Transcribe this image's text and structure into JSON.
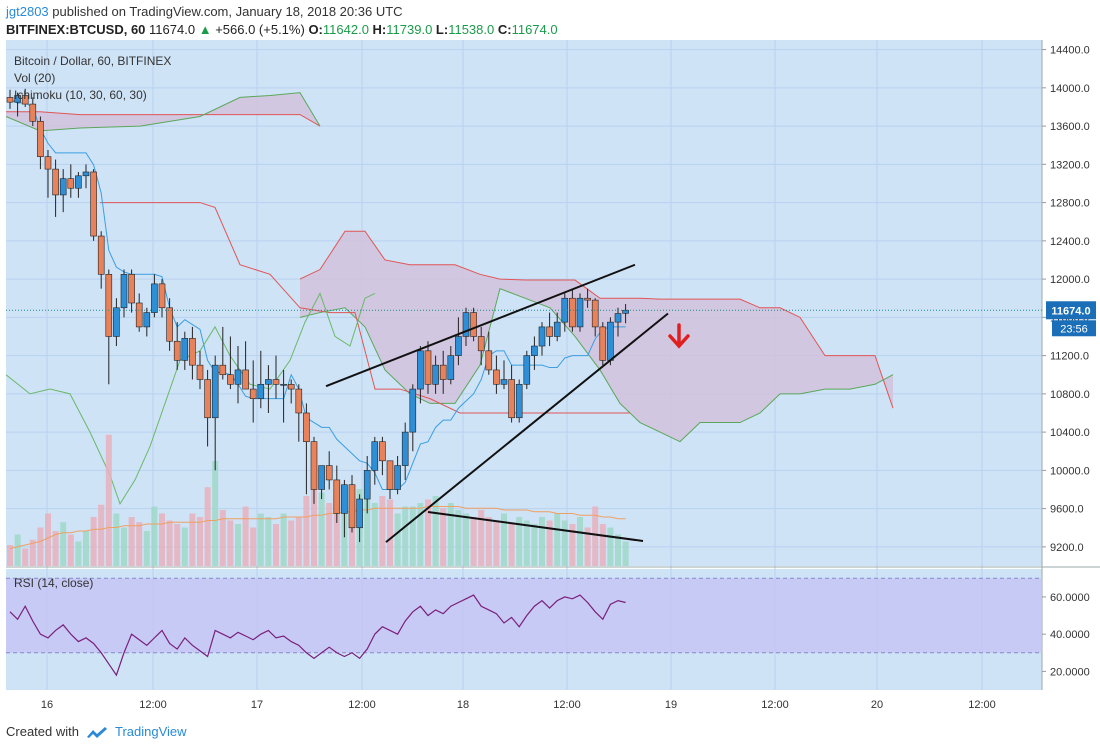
{
  "header": {
    "username": "jgt2803",
    "published_text": "published on TradingView.com, January 18, 2018 20:36 UTC",
    "symbol": "BITFINEX:BTCUSD, 60",
    "last": "11674.0",
    "change": "+566.0 (+5.1%)",
    "o_label": "O:",
    "o": "11642.0",
    "h_label": "H:",
    "h": "11739.0",
    "l_label": "L:",
    "l": "11538.0",
    "c_label": "C:",
    "c": "11674.0"
  },
  "legend": {
    "title": "Bitcoin / Dollar, 60, BITFINEX",
    "vol": "Vol (20)",
    "ichimoku": "Ichimoku (10, 30, 60, 30)",
    "rsi": "RSI (14, close)"
  },
  "price_tag": {
    "price": "11674.0",
    "countdown": "23:56"
  },
  "footer": {
    "created_with": "Created with",
    "brand": "TradingView"
  },
  "colors": {
    "bg": "#cfe3f7",
    "up": "#2f8fd6",
    "down": "#e8825a",
    "cloud": "#d2c2dc",
    "senkou_a": "#5aa75a",
    "senkou_b": "#e05555",
    "tenkan": "#3a9ee0",
    "chikou": "#6ab86a",
    "rsi": "#7b1f7b",
    "rsi_band": "#c3c3f2",
    "vol_ma": "#f0a060"
  },
  "chart_data": {
    "type": "candlestick",
    "title": "Bitcoin / Dollar, 60, BITFINEX",
    "price_axis": {
      "ticks": [
        "14400.0",
        "14000.0",
        "13600.0",
        "13200.0",
        "12800.0",
        "12400.0",
        "12000.0",
        "11600.0",
        "11200.0",
        "10800.0",
        "10400.0",
        "10000.0",
        "9600.0",
        "9200.0"
      ],
      "range": [
        9000,
        14500
      ]
    },
    "rsi_axis": {
      "ticks": [
        "60.0000",
        "40.0000",
        "20.0000"
      ]
    },
    "time_axis": {
      "ticks": [
        "16",
        "12:00",
        "17",
        "12:00",
        "18",
        "12:00",
        "19",
        "12:00",
        "20",
        "12:00"
      ]
    },
    "candles": [
      {
        "o": 13900,
        "h": 13980,
        "l": 13780,
        "c": 13850
      },
      {
        "o": 13850,
        "h": 13950,
        "l": 13700,
        "c": 13920
      },
      {
        "o": 13920,
        "h": 13990,
        "l": 13800,
        "c": 13830
      },
      {
        "o": 13830,
        "h": 13900,
        "l": 13600,
        "c": 13650
      },
      {
        "o": 13650,
        "h": 13700,
        "l": 13150,
        "c": 13280
      },
      {
        "o": 13280,
        "h": 13350,
        "l": 12850,
        "c": 13150
      },
      {
        "o": 13150,
        "h": 13250,
        "l": 12650,
        "c": 12880
      },
      {
        "o": 12880,
        "h": 13150,
        "l": 12700,
        "c": 13050
      },
      {
        "o": 13050,
        "h": 13200,
        "l": 12850,
        "c": 12950
      },
      {
        "o": 12950,
        "h": 13120,
        "l": 12850,
        "c": 13080
      },
      {
        "o": 13080,
        "h": 13200,
        "l": 12950,
        "c": 13120
      },
      {
        "o": 13120,
        "h": 13150,
        "l": 12400,
        "c": 12450
      },
      {
        "o": 12450,
        "h": 12500,
        "l": 11900,
        "c": 12050
      },
      {
        "o": 12050,
        "h": 12100,
        "l": 10900,
        "c": 11400
      },
      {
        "o": 11400,
        "h": 11800,
        "l": 11300,
        "c": 11700
      },
      {
        "o": 11700,
        "h": 12100,
        "l": 11600,
        "c": 12050
      },
      {
        "o": 12050,
        "h": 12100,
        "l": 11650,
        "c": 11750
      },
      {
        "o": 11750,
        "h": 11850,
        "l": 11450,
        "c": 11500
      },
      {
        "o": 11500,
        "h": 11700,
        "l": 11400,
        "c": 11650
      },
      {
        "o": 11650,
        "h": 12050,
        "l": 11600,
        "c": 11950
      },
      {
        "o": 11950,
        "h": 12000,
        "l": 11600,
        "c": 11700
      },
      {
        "o": 11700,
        "h": 11800,
        "l": 11250,
        "c": 11350
      },
      {
        "o": 11350,
        "h": 11550,
        "l": 11050,
        "c": 11150
      },
      {
        "o": 11150,
        "h": 11450,
        "l": 11050,
        "c": 11380
      },
      {
        "o": 11380,
        "h": 11500,
        "l": 10950,
        "c": 11100
      },
      {
        "o": 11100,
        "h": 11250,
        "l": 10850,
        "c": 10950
      },
      {
        "o": 10950,
        "h": 11050,
        "l": 10250,
        "c": 10550
      },
      {
        "o": 10550,
        "h": 11200,
        "l": 10000,
        "c": 11100
      },
      {
        "o": 11100,
        "h": 11500,
        "l": 10950,
        "c": 11000
      },
      {
        "o": 11000,
        "h": 11400,
        "l": 10850,
        "c": 10900
      },
      {
        "o": 10900,
        "h": 11300,
        "l": 10700,
        "c": 11050
      },
      {
        "o": 11050,
        "h": 11350,
        "l": 10850,
        "c": 10850
      },
      {
        "o": 10850,
        "h": 11150,
        "l": 10500,
        "c": 10750
      },
      {
        "o": 10750,
        "h": 11250,
        "l": 10650,
        "c": 10900
      },
      {
        "o": 10900,
        "h": 11100,
        "l": 10600,
        "c": 10950
      },
      {
        "o": 10950,
        "h": 11200,
        "l": 10750,
        "c": 10900
      },
      {
        "o": 10900,
        "h": 11050,
        "l": 10500,
        "c": 10900
      },
      {
        "o": 10900,
        "h": 10950,
        "l": 10700,
        "c": 10850
      },
      {
        "o": 10850,
        "h": 10900,
        "l": 10300,
        "c": 10600
      },
      {
        "o": 10600,
        "h": 10700,
        "l": 9750,
        "c": 10300
      },
      {
        "o": 10300,
        "h": 10350,
        "l": 9650,
        "c": 9800
      },
      {
        "o": 9800,
        "h": 10050,
        "l": 9700,
        "c": 10050
      },
      {
        "o": 10050,
        "h": 10200,
        "l": 9800,
        "c": 9900
      },
      {
        "o": 9900,
        "h": 10050,
        "l": 9450,
        "c": 9550
      },
      {
        "o": 9550,
        "h": 9900,
        "l": 9300,
        "c": 9850
      },
      {
        "o": 9850,
        "h": 9950,
        "l": 9350,
        "c": 9400
      },
      {
        "o": 9400,
        "h": 9750,
        "l": 9250,
        "c": 9700
      },
      {
        "o": 9700,
        "h": 10150,
        "l": 9550,
        "c": 10000
      },
      {
        "o": 10000,
        "h": 10350,
        "l": 9850,
        "c": 10300
      },
      {
        "o": 10300,
        "h": 10350,
        "l": 9950,
        "c": 10100
      },
      {
        "o": 10100,
        "h": 10100,
        "l": 9700,
        "c": 9800
      },
      {
        "o": 9800,
        "h": 10150,
        "l": 9750,
        "c": 10050
      },
      {
        "o": 10050,
        "h": 10500,
        "l": 9900,
        "c": 10400
      },
      {
        "o": 10400,
        "h": 10900,
        "l": 10200,
        "c": 10850
      },
      {
        "o": 10850,
        "h": 11300,
        "l": 10700,
        "c": 11250
      },
      {
        "o": 11250,
        "h": 11350,
        "l": 10800,
        "c": 10900
      },
      {
        "o": 10900,
        "h": 11200,
        "l": 10800,
        "c": 11100
      },
      {
        "o": 11100,
        "h": 11250,
        "l": 10800,
        "c": 10950
      },
      {
        "o": 10950,
        "h": 11300,
        "l": 10900,
        "c": 11200
      },
      {
        "o": 11200,
        "h": 11600,
        "l": 11100,
        "c": 11400
      },
      {
        "o": 11400,
        "h": 11700,
        "l": 11300,
        "c": 11650
      },
      {
        "o": 11650,
        "h": 11700,
        "l": 11350,
        "c": 11400
      },
      {
        "o": 11400,
        "h": 11500,
        "l": 11100,
        "c": 11250
      },
      {
        "o": 11250,
        "h": 11450,
        "l": 11000,
        "c": 11050
      },
      {
        "o": 11050,
        "h": 11200,
        "l": 10800,
        "c": 10900
      },
      {
        "o": 10900,
        "h": 11150,
        "l": 10850,
        "c": 10950
      },
      {
        "o": 10950,
        "h": 11100,
        "l": 10500,
        "c": 10550
      },
      {
        "o": 10550,
        "h": 10950,
        "l": 10500,
        "c": 10900
      },
      {
        "o": 10900,
        "h": 11250,
        "l": 10850,
        "c": 11200
      },
      {
        "o": 11200,
        "h": 11400,
        "l": 11050,
        "c": 11300
      },
      {
        "o": 11300,
        "h": 11550,
        "l": 11200,
        "c": 11500
      },
      {
        "o": 11500,
        "h": 11650,
        "l": 11300,
        "c": 11400
      },
      {
        "o": 11400,
        "h": 11650,
        "l": 11350,
        "c": 11550
      },
      {
        "o": 11550,
        "h": 11850,
        "l": 11450,
        "c": 11800
      },
      {
        "o": 11800,
        "h": 11900,
        "l": 11450,
        "c": 11500
      },
      {
        "o": 11500,
        "h": 11850,
        "l": 11450,
        "c": 11800
      },
      {
        "o": 11800,
        "h": 11900,
        "l": 11700,
        "c": 11780
      },
      {
        "o": 11780,
        "h": 11800,
        "l": 11400,
        "c": 11500
      },
      {
        "o": 11500,
        "h": 11550,
        "l": 11100,
        "c": 11150
      },
      {
        "o": 11150,
        "h": 11600,
        "l": 11100,
        "c": 11550
      },
      {
        "o": 11550,
        "h": 11700,
        "l": 11400,
        "c": 11640
      },
      {
        "o": 11642,
        "h": 11739,
        "l": 11538,
        "c": 11674
      }
    ],
    "volume": [
      12,
      18,
      10,
      15,
      22,
      30,
      20,
      25,
      18,
      14,
      20,
      28,
      35,
      75,
      30,
      22,
      28,
      25,
      20,
      34,
      30,
      26,
      24,
      22,
      30,
      28,
      45,
      60,
      32,
      26,
      24,
      34,
      22,
      30,
      28,
      24,
      30,
      26,
      28,
      40,
      48,
      42,
      36,
      32,
      30,
      34,
      44,
      38,
      36,
      40,
      38,
      30,
      34,
      34,
      36,
      38,
      40,
      33,
      36,
      32,
      30,
      28,
      32,
      28,
      26,
      30,
      24,
      28,
      26,
      24,
      28,
      26,
      30,
      26,
      24,
      28,
      22,
      34,
      24,
      22,
      18,
      14
    ],
    "vol_ma": [
      10,
      11,
      12,
      13,
      14,
      16,
      18,
      19,
      19,
      20,
      20,
      21,
      21,
      22,
      22,
      23,
      23,
      23,
      24,
      24,
      24,
      25,
      25,
      25,
      25,
      25,
      26,
      26,
      27,
      27,
      27,
      27,
      27,
      27,
      27,
      27,
      28,
      28,
      28,
      28,
      29,
      29,
      30,
      30,
      31,
      31,
      32,
      32,
      33,
      33,
      33,
      33,
      33,
      33,
      33,
      34,
      34,
      34,
      34,
      34,
      33,
      33,
      33,
      33,
      33,
      32,
      32,
      32,
      32,
      31,
      31,
      31,
      30,
      30,
      30,
      29,
      29,
      29,
      28,
      28,
      27,
      27
    ],
    "rsi": [
      52,
      48,
      55,
      47,
      40,
      38,
      42,
      45,
      40,
      36,
      38,
      35,
      30,
      24,
      18,
      30,
      40,
      37,
      34,
      38,
      42,
      35,
      32,
      38,
      34,
      31,
      28,
      42,
      40,
      38,
      41,
      39,
      37,
      40,
      42,
      38,
      39,
      36,
      34,
      30,
      27,
      30,
      33,
      30,
      28,
      30,
      27,
      32,
      40,
      44,
      42,
      40,
      47,
      52,
      55,
      50,
      53,
      51,
      55,
      57,
      59,
      61,
      55,
      53,
      51,
      46,
      49,
      44,
      50,
      55,
      58,
      54,
      58,
      60,
      59,
      61,
      57,
      52,
      48,
      56,
      58,
      57
    ]
  }
}
